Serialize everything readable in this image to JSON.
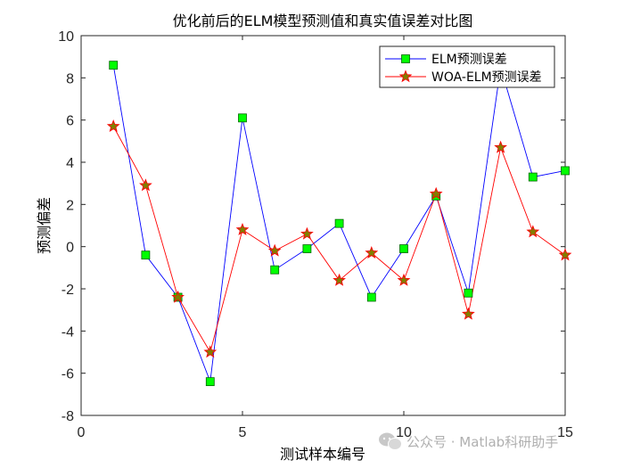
{
  "chart_data": {
    "type": "line",
    "title": "优化前后的ELM模型预测值和真实值误差对比图",
    "xlabel": "测试样本编号",
    "ylabel": "预测偏差",
    "xlim": [
      0,
      15
    ],
    "ylim": [
      -8,
      10
    ],
    "xticks": [
      0,
      5,
      10,
      15
    ],
    "yticks": [
      -8,
      -6,
      -4,
      -2,
      0,
      2,
      4,
      6,
      8,
      10
    ],
    "grid": false,
    "legend_position": "top-right",
    "x": [
      1,
      2,
      3,
      4,
      5,
      6,
      7,
      8,
      9,
      10,
      11,
      12,
      13,
      14,
      15
    ],
    "series": [
      {
        "name": "ELM预测误差",
        "color": "#0000ff",
        "marker": "square",
        "marker_fill": "#00ff00",
        "marker_edge": "#006400",
        "values": [
          8.6,
          -0.4,
          -2.4,
          -6.4,
          6.1,
          -1.1,
          -0.1,
          1.1,
          -2.4,
          -0.1,
          2.4,
          -2.2,
          8.5,
          3.3,
          3.6
        ]
      },
      {
        "name": "WOA-ELM预测误差",
        "color": "#ff0000",
        "marker": "star",
        "marker_fill": "#808000",
        "marker_edge": "#ff0000",
        "values": [
          5.7,
          2.9,
          -2.4,
          -5.0,
          0.8,
          -0.2,
          0.6,
          -1.6,
          -0.3,
          -1.6,
          2.5,
          -3.2,
          4.7,
          0.7,
          -0.4
        ]
      }
    ]
  },
  "watermark": "公众号 · Matlab科研助手"
}
